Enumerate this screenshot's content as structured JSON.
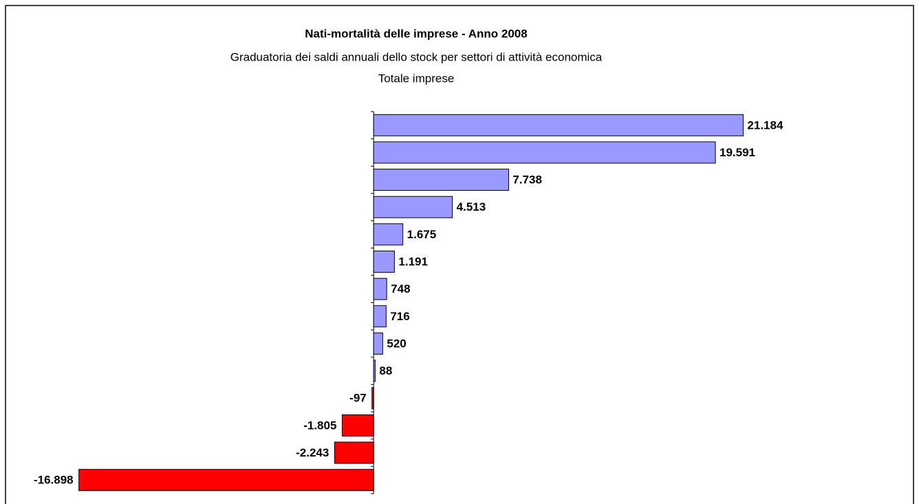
{
  "chart_data": {
    "type": "hbar",
    "title": "Nati-mortalità delle imprese - Anno 2008",
    "subtitle": "Graduatoria dei saldi annuali dello stock per settori di attività economica",
    "subtitle2": "Totale imprese",
    "values": [
      21184,
      19591,
      7738,
      4513,
      1675,
      1191,
      748,
      716,
      520,
      88,
      -97,
      -1805,
      -2243,
      -16898
    ],
    "value_labels": [
      "21.184",
      "19.591",
      "7.738",
      "4.513",
      "1.675",
      "1.191",
      "748",
      "716",
      "520",
      "88",
      "-97",
      "-1.805",
      "-2.243",
      "-16.898"
    ],
    "color": "#9999ff",
    "negative_color": "#ff0000",
    "xlim": [
      -20000,
      30000
    ]
  }
}
